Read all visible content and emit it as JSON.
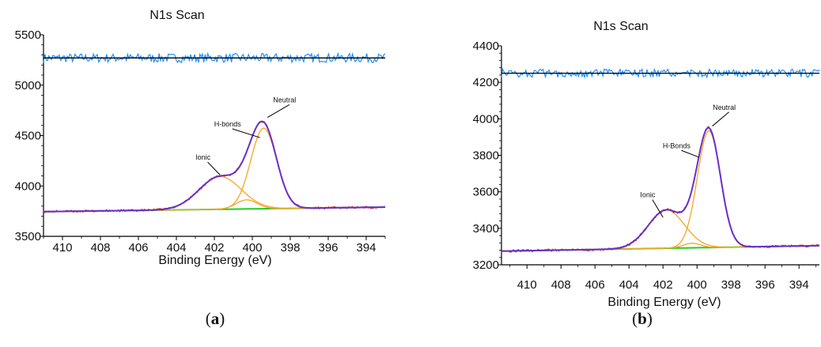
{
  "colors": {
    "envelope": "#6a2fc8",
    "component": "#f5a623",
    "background": "#22cc22",
    "raw": "#e0202a",
    "residual": "#1f8fff",
    "axis": "#000000"
  },
  "chart_data": [
    {
      "type": "line",
      "title": "N1s Scan",
      "xlabel": "Binding Energy (eV)",
      "ylabel": "",
      "panel_label": "(a)",
      "bold_letter": "a",
      "xlim": [
        411,
        393
      ],
      "ylim": [
        3500,
        5500
      ],
      "x_reversed": true,
      "xticks": [
        410,
        408,
        406,
        404,
        402,
        400,
        398,
        396,
        394
      ],
      "yticks": [
        3500,
        4000,
        4500,
        5000,
        5500
      ],
      "baseline": {
        "x": [
          411,
          393
        ],
        "y": [
          3745,
          3790
        ]
      },
      "components": [
        {
          "name": "Ionic",
          "center": 401.7,
          "height": 325,
          "width": 2.6
        },
        {
          "name": "H-bonds",
          "center": 400.3,
          "height": 90,
          "width": 1.3
        },
        {
          "name": "Neutral",
          "center": 399.4,
          "height": 800,
          "width": 1.6
        }
      ],
      "residual_level": 5270,
      "residual_amplitude": 45,
      "annotations": [
        {
          "text": "Ionic",
          "x": 401.7,
          "y": 4110,
          "label_x": 402.6,
          "label_y": 4260
        },
        {
          "text": "H-bonds",
          "x": 399.6,
          "y": 4480,
          "label_x": 401.3,
          "label_y": 4590
        },
        {
          "text": "Neutral",
          "x": 399.2,
          "y": 4680,
          "label_x": 398.3,
          "label_y": 4830
        }
      ]
    },
    {
      "type": "line",
      "title": "N1s Scan",
      "xlabel": "Binding Energy (eV)",
      "ylabel": "",
      "panel_label": "(b)",
      "bold_letter": "b",
      "xlim": [
        411.5,
        392.8
      ],
      "ylim": [
        3200,
        4400
      ],
      "x_reversed": true,
      "xticks": [
        410,
        408,
        406,
        404,
        402,
        400,
        398,
        396,
        394
      ],
      "yticks": [
        3200,
        3400,
        3600,
        3800,
        4000,
        4200,
        4400
      ],
      "baseline": {
        "x": [
          411.5,
          392.8
        ],
        "y": [
          3275,
          3305
        ]
      },
      "components": [
        {
          "name": "Ionic",
          "center": 401.8,
          "height": 210,
          "width": 2.5
        },
        {
          "name": "H-Bonds",
          "center": 400.3,
          "height": 25,
          "width": 1.2
        },
        {
          "name": "Neutral",
          "center": 399.3,
          "height": 640,
          "width": 1.6
        }
      ],
      "residual_level": 4250,
      "residual_amplitude": 22,
      "annotations": [
        {
          "text": "Ionic",
          "x": 402.0,
          "y": 3460,
          "label_x": 402.9,
          "label_y": 3570
        },
        {
          "text": "H-Bonds",
          "x": 399.9,
          "y": 3790,
          "label_x": 401.2,
          "label_y": 3840
        },
        {
          "text": "Neutral",
          "x": 399.1,
          "y": 3960,
          "label_x": 398.4,
          "label_y": 4050
        }
      ]
    }
  ]
}
